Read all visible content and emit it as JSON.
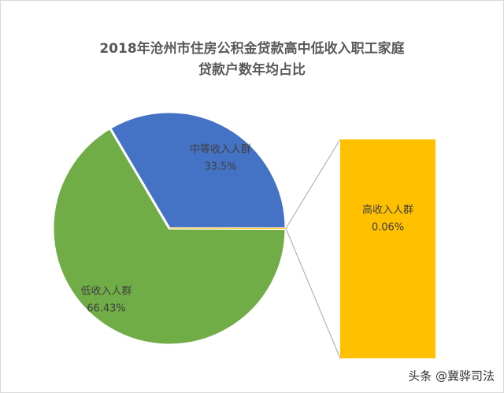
{
  "chart_data": {
    "type": "pie-of-bar",
    "title": [
      "2018年沧州市住房公积金贷款高中低收入职工家庭",
      "贷款户数年均占比"
    ],
    "categories": [
      "中等收入人群",
      "低收入人群",
      "高收入人群"
    ],
    "values": [
      33.5,
      66.43,
      0.06
    ],
    "value_labels": [
      "33.5%",
      "66.43%",
      "0.06%"
    ],
    "colors": [
      "#4472c4",
      "#70ad47",
      "#ffc000"
    ]
  },
  "watermark": "头条 @冀骅司法"
}
